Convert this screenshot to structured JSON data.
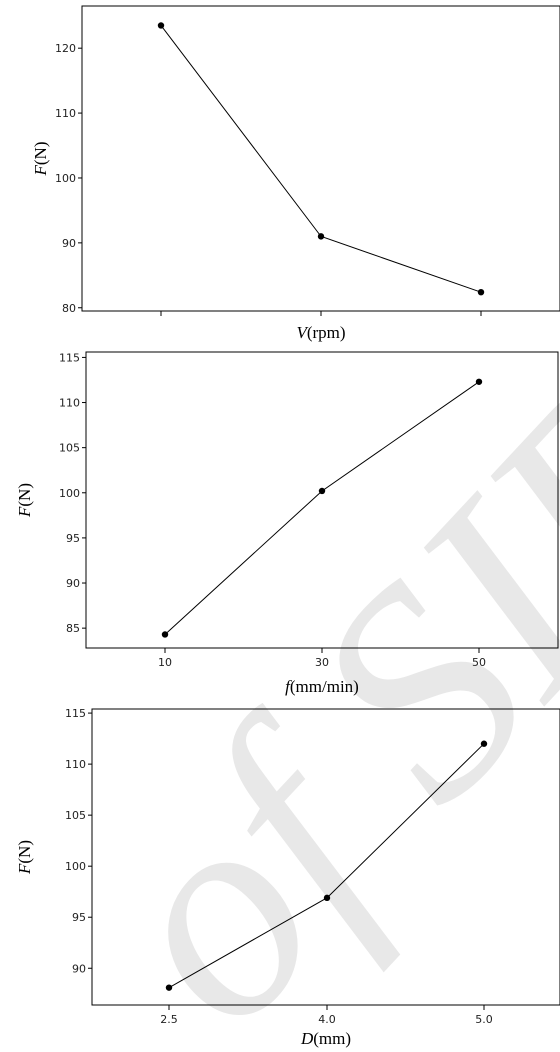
{
  "watermark": "of SID",
  "chart_data": [
    {
      "type": "line",
      "title": "",
      "xlabel_var": "V",
      "xlabel_unit": "(rpm)",
      "ylabel_var": "F",
      "ylabel_unit": "(N)",
      "categories": [
        "",
        "",
        ""
      ],
      "values": [
        123.5,
        91.0,
        82.4
      ],
      "yticks": [
        80,
        90,
        100,
        110,
        120
      ],
      "ylim": [
        79.5,
        126.5
      ],
      "grid": false,
      "marker": "circle"
    },
    {
      "type": "line",
      "title": "",
      "xlabel_var": "f",
      "xlabel_unit": "(mm/min)",
      "ylabel_var": "F",
      "ylabel_unit": "(N)",
      "categories": [
        "10",
        "30",
        "50"
      ],
      "values": [
        84.3,
        100.2,
        112.3
      ],
      "yticks": [
        85,
        90,
        95,
        100,
        105,
        110,
        115
      ],
      "ylim": [
        82.8,
        115.6
      ],
      "grid": false,
      "marker": "circle"
    },
    {
      "type": "line",
      "title": "",
      "xlabel_var": "D",
      "xlabel_unit": "(mm)",
      "ylabel_var": "F",
      "ylabel_unit": "(N)",
      "categories": [
        "2.5",
        "4.0",
        "5.0"
      ],
      "values": [
        88.1,
        96.9,
        112.0
      ],
      "yticks": [
        90,
        95,
        100,
        105,
        110,
        115
      ],
      "ylim": [
        86.4,
        115.4
      ],
      "grid": false,
      "marker": "circle"
    }
  ]
}
